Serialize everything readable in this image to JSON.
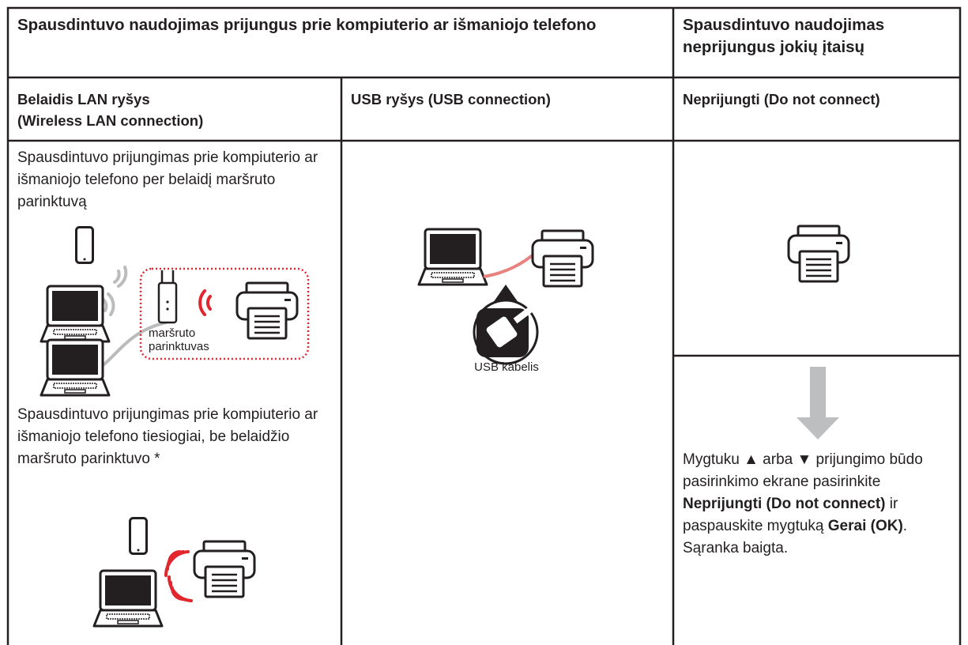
{
  "header": {
    "left_title": "Spausdintuvo naudojimas prijungus prie kompiuterio ar išmaniojo telefono",
    "right_title": "Spausdintuvo naudojimas neprijungus jokių įtaisų"
  },
  "columns": [
    {
      "heading": [
        "Belaidis LAN ryšys",
        "(Wireless LAN connection)"
      ],
      "text_router": "Spausdintuvo prijungimas prie kompiuterio ar išmaniojo telefono per belaidį maršruto parinktuvą",
      "router_label": "maršruto parinktuvas",
      "text_direct": "Spausdintuvo prijungimas prie kompiuterio ar išmaniojo telefono tiesiogiai, be belaidžio maršruto parinktuvo *"
    },
    {
      "heading": [
        "USB ryšys (USB connection)"
      ],
      "cable_label": "USB kabelis"
    },
    {
      "heading": [
        "Neprijungti (Do not connect)"
      ],
      "instruction": [
        {
          "text": "Mygtuku ▲ arba ▼ prijungimo būdo pasirinkimo ekrane pasirinkite ",
          "bold": false
        },
        {
          "text": "Neprijungti (Do not connect)",
          "bold": true
        },
        {
          "text": " ir paspauskite mygtuką ",
          "bold": false
        },
        {
          "text": "Gerai (OK)",
          "bold": true
        },
        {
          "text": ". Sąranka baigta.",
          "bold": false
        }
      ]
    }
  ]
}
